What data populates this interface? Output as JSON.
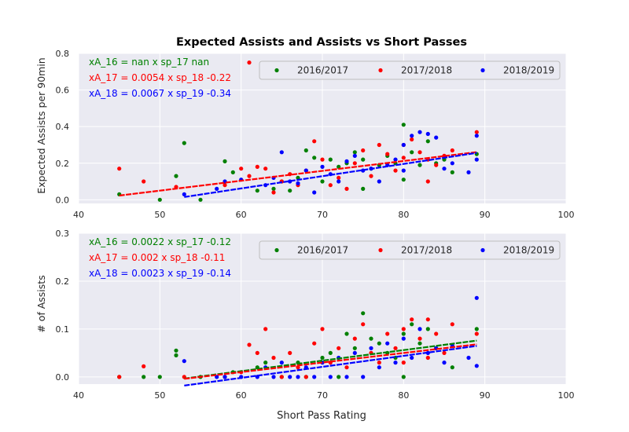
{
  "title": "Expected Assists and Assists vs Short Passes",
  "xlabel": "Short Pass Rating",
  "colors": {
    "2016/2017": "#008000",
    "2017/2018": "#ff0000",
    "2018/2019": "#0000ff",
    "panel_bg": "#eaeaf2",
    "grid": "#ffffff"
  },
  "chart_data": [
    {
      "type": "scatter",
      "ylabel": "Expected Assists per 90min",
      "xlim": [
        40,
        100
      ],
      "ylim": [
        -0.02,
        0.8
      ],
      "xticks": [
        "40",
        "50",
        "60",
        "70",
        "80",
        "90",
        "100"
      ],
      "yticks": [
        "0.0",
        "0.2",
        "0.4",
        "0.6",
        "0.8"
      ],
      "legend": {
        "placement": "top-right",
        "entries": [
          "2016/2017",
          "2017/2018",
          "2018/2019"
        ]
      },
      "annotations": [
        {
          "text": "xA_16 = nan x sp_17 nan",
          "color": "#008000"
        },
        {
          "text": "xA_17 = 0.0054 x sp_18 -0.22",
          "color": "#ff0000"
        },
        {
          "text": "xA_18 = 0.0067 x sp_19 -0.34",
          "color": "#0000ff"
        }
      ],
      "series": [
        {
          "name": "2016/2017",
          "color": "#008000",
          "points": [
            [
              45,
              0.03
            ],
            [
              50,
              0.0
            ],
            [
              52,
              0.13
            ],
            [
              53,
              0.31
            ],
            [
              55,
              0.0
            ],
            [
              58,
              0.21
            ],
            [
              59,
              0.15
            ],
            [
              62,
              0.05
            ],
            [
              64,
              0.06
            ],
            [
              65,
              0.1
            ],
            [
              66,
              0.05
            ],
            [
              67,
              0.12
            ],
            [
              68,
              0.27
            ],
            [
              69,
              0.23
            ],
            [
              70,
              0.1
            ],
            [
              71,
              0.22
            ],
            [
              72,
              0.18
            ],
            [
              73,
              0.2
            ],
            [
              74,
              0.26
            ],
            [
              75,
              0.22
            ],
            [
              75,
              0.06
            ],
            [
              76,
              0.17
            ],
            [
              77,
              0.19
            ],
            [
              78,
              0.24
            ],
            [
              79,
              0.2
            ],
            [
              80,
              0.41
            ],
            [
              80,
              0.11
            ],
            [
              81,
              0.26
            ],
            [
              82,
              0.19
            ],
            [
              83,
              0.32
            ],
            [
              84,
              0.2
            ],
            [
              85,
              0.22
            ],
            [
              86,
              0.15
            ],
            [
              89,
              0.25
            ]
          ]
        },
        {
          "name": "2017/2018",
          "color": "#ff0000",
          "points": [
            [
              45,
              0.17
            ],
            [
              48,
              0.1
            ],
            [
              52,
              0.07
            ],
            [
              58,
              0.08
            ],
            [
              60,
              0.17
            ],
            [
              61,
              0.75
            ],
            [
              61,
              0.13
            ],
            [
              62,
              0.18
            ],
            [
              63,
              0.17
            ],
            [
              64,
              0.04
            ],
            [
              65,
              0.1
            ],
            [
              66,
              0.14
            ],
            [
              67,
              0.08
            ],
            [
              68,
              0.16
            ],
            [
              69,
              0.32
            ],
            [
              70,
              0.22
            ],
            [
              71,
              0.08
            ],
            [
              72,
              0.12
            ],
            [
              73,
              0.06
            ],
            [
              74,
              0.2
            ],
            [
              75,
              0.27
            ],
            [
              76,
              0.13
            ],
            [
              77,
              0.3
            ],
            [
              78,
              0.25
            ],
            [
              79,
              0.16
            ],
            [
              80,
              0.3
            ],
            [
              80,
              0.23
            ],
            [
              81,
              0.33
            ],
            [
              82,
              0.26
            ],
            [
              83,
              0.1
            ],
            [
              83,
              0.22
            ],
            [
              84,
              0.19
            ],
            [
              85,
              0.24
            ],
            [
              86,
              0.27
            ],
            [
              89,
              0.37
            ]
          ]
        },
        {
          "name": "2018/2019",
          "color": "#0000ff",
          "points": [
            [
              53,
              0.03
            ],
            [
              57,
              0.06
            ],
            [
              58,
              0.1
            ],
            [
              60,
              0.11
            ],
            [
              63,
              0.08
            ],
            [
              64,
              0.12
            ],
            [
              65,
              0.26
            ],
            [
              66,
              0.1
            ],
            [
              67,
              0.09
            ],
            [
              68,
              0.16
            ],
            [
              69,
              0.04
            ],
            [
              70,
              0.18
            ],
            [
              71,
              0.14
            ],
            [
              72,
              0.1
            ],
            [
              73,
              0.21
            ],
            [
              74,
              0.24
            ],
            [
              75,
              0.16
            ],
            [
              76,
              0.17
            ],
            [
              77,
              0.1
            ],
            [
              78,
              0.19
            ],
            [
              79,
              0.22
            ],
            [
              80,
              0.3
            ],
            [
              80,
              0.16
            ],
            [
              81,
              0.35
            ],
            [
              82,
              0.37
            ],
            [
              83,
              0.36
            ],
            [
              84,
              0.34
            ],
            [
              85,
              0.17
            ],
            [
              86,
              0.2
            ],
            [
              88,
              0.15
            ],
            [
              89,
              0.35
            ],
            [
              89,
              0.22
            ]
          ]
        }
      ],
      "fit_lines": [
        {
          "name": "2017/2018",
          "color": "#ff0000",
          "slope": 0.0054,
          "intercept": -0.22,
          "x_range": [
            45,
            89
          ]
        },
        {
          "name": "2018/2019",
          "color": "#0000ff",
          "slope": 0.0067,
          "intercept": -0.34,
          "x_range": [
            53,
            89
          ]
        }
      ]
    },
    {
      "type": "scatter",
      "ylabel": "# of Assists",
      "xlim": [
        40,
        100
      ],
      "ylim": [
        -0.015,
        0.3
      ],
      "xticks": [
        "40",
        "50",
        "60",
        "70",
        "80",
        "90",
        "100"
      ],
      "yticks": [
        "0.0",
        "0.1",
        "0.2",
        "0.3"
      ],
      "legend": {
        "placement": "top-right",
        "entries": [
          "2016/2017",
          "2017/2018",
          "2018/2019"
        ]
      },
      "annotations": [
        {
          "text": "xA_16 = 0.0022 x sp_17  -0.12",
          "color": "#008000"
        },
        {
          "text": "xA_17 = 0.002 x sp_18  -0.11",
          "color": "#ff0000"
        },
        {
          "text": "xA_18 = 0.0023 x sp_19  -0.14",
          "color": "#0000ff"
        }
      ],
      "series": [
        {
          "name": "2016/2017",
          "color": "#008000",
          "points": [
            [
              45,
              0.0
            ],
            [
              48,
              0.0
            ],
            [
              50,
              0.0
            ],
            [
              52,
              0.055
            ],
            [
              52,
              0.045
            ],
            [
              55,
              0.0
            ],
            [
              58,
              0.0
            ],
            [
              59,
              0.01
            ],
            [
              62,
              0.02
            ],
            [
              63,
              0.03
            ],
            [
              65,
              0.0
            ],
            [
              67,
              0.03
            ],
            [
              68,
              0.0
            ],
            [
              70,
              0.04
            ],
            [
              71,
              0.05
            ],
            [
              72,
              0.0
            ],
            [
              73,
              0.09
            ],
            [
              74,
              0.06
            ],
            [
              75,
              0.133
            ],
            [
              76,
              0.08
            ],
            [
              77,
              0.07
            ],
            [
              78,
              0.05
            ],
            [
              79,
              0.04
            ],
            [
              80,
              0.09
            ],
            [
              80,
              0.0
            ],
            [
              81,
              0.11
            ],
            [
              82,
              0.07
            ],
            [
              83,
              0.1
            ],
            [
              84,
              0.06
            ],
            [
              86,
              0.02
            ],
            [
              89,
              0.1
            ]
          ]
        },
        {
          "name": "2017/2018",
          "color": "#ff0000",
          "points": [
            [
              45,
              0.0
            ],
            [
              48,
              0.022
            ],
            [
              53,
              0.0
            ],
            [
              58,
              0.0
            ],
            [
              60,
              0.01
            ],
            [
              61,
              0.067
            ],
            [
              62,
              0.05
            ],
            [
              63,
              0.1
            ],
            [
              64,
              0.04
            ],
            [
              65,
              0.0
            ],
            [
              66,
              0.05
            ],
            [
              67,
              0.02
            ],
            [
              68,
              0.0
            ],
            [
              69,
              0.07
            ],
            [
              70,
              0.1
            ],
            [
              71,
              0.03
            ],
            [
              72,
              0.06
            ],
            [
              73,
              0.02
            ],
            [
              74,
              0.08
            ],
            [
              75,
              0.11
            ],
            [
              76,
              0.05
            ],
            [
              77,
              0.03
            ],
            [
              78,
              0.09
            ],
            [
              79,
              0.06
            ],
            [
              80,
              0.1
            ],
            [
              80,
              0.03
            ],
            [
              81,
              0.12
            ],
            [
              82,
              0.08
            ],
            [
              83,
              0.12
            ],
            [
              83,
              0.04
            ],
            [
              84,
              0.09
            ],
            [
              85,
              0.05
            ],
            [
              86,
              0.11
            ],
            [
              89,
              0.09
            ]
          ]
        },
        {
          "name": "2018/2019",
          "color": "#0000ff",
          "points": [
            [
              53,
              0.033
            ],
            [
              57,
              0.0
            ],
            [
              58,
              0.0
            ],
            [
              60,
              0.0
            ],
            [
              62,
              0.0
            ],
            [
              63,
              0.02
            ],
            [
              64,
              0.0
            ],
            [
              65,
              0.03
            ],
            [
              66,
              0.0
            ],
            [
              67,
              0.0
            ],
            [
              68,
              0.02
            ],
            [
              69,
              0.0
            ],
            [
              70,
              0.03
            ],
            [
              71,
              0.0
            ],
            [
              72,
              0.04
            ],
            [
              73,
              0.0
            ],
            [
              74,
              0.05
            ],
            [
              75,
              0.0
            ],
            [
              76,
              0.06
            ],
            [
              77,
              0.02
            ],
            [
              78,
              0.07
            ],
            [
              79,
              0.03
            ],
            [
              80,
              0.08
            ],
            [
              81,
              0.04
            ],
            [
              82,
              0.1
            ],
            [
              83,
              0.05
            ],
            [
              84,
              0.06
            ],
            [
              85,
              0.03
            ],
            [
              86,
              0.065
            ],
            [
              88,
              0.04
            ],
            [
              89,
              0.165
            ],
            [
              89,
              0.023
            ]
          ]
        }
      ],
      "fit_lines": [
        {
          "name": "2016/2017",
          "color": "#008000",
          "slope": 0.0022,
          "intercept": -0.12,
          "x_range": [
            53,
            89
          ]
        },
        {
          "name": "2017/2018",
          "color": "#ff0000",
          "slope": 0.002,
          "intercept": -0.11,
          "x_range": [
            53,
            89
          ]
        },
        {
          "name": "2018/2019",
          "color": "#0000ff",
          "slope": 0.0023,
          "intercept": -0.14,
          "x_range": [
            53,
            89
          ]
        }
      ]
    }
  ]
}
